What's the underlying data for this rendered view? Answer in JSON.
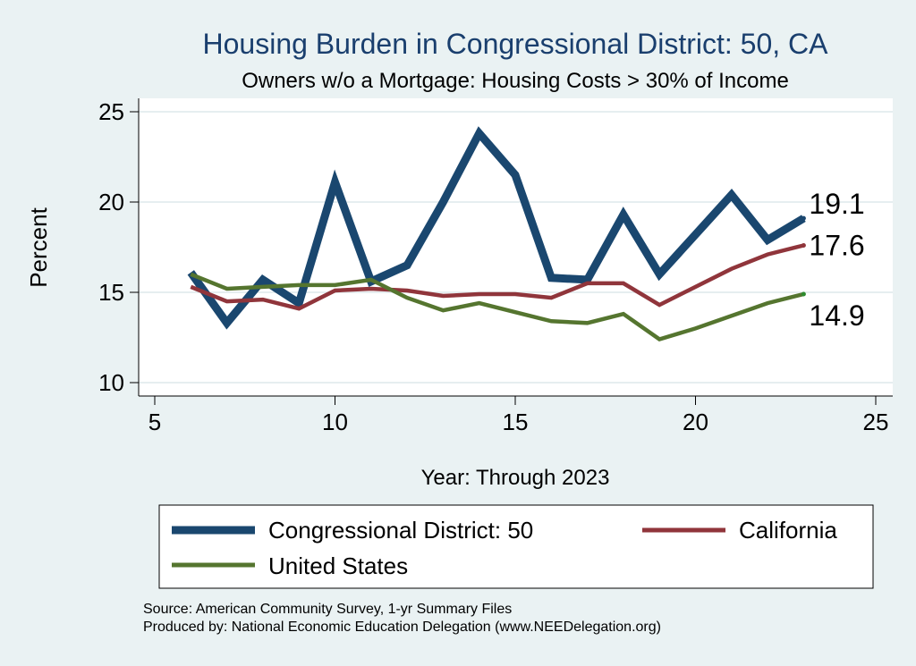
{
  "chart_data": {
    "type": "line",
    "title": "Housing Burden in Congressional District:  50, CA",
    "subtitle": "Owners w/o a Mortgage: Housing Costs > 30% of Income",
    "xlabel": "Year: Through 2023",
    "ylabel": "Percent",
    "xlim": [
      5,
      25
    ],
    "ylim": [
      10,
      25
    ],
    "xticks": [
      5,
      10,
      15,
      20,
      25
    ],
    "yticks": [
      10,
      15,
      20,
      25
    ],
    "grid": true,
    "series": [
      {
        "name": "Congressional District:  50",
        "color": "#1a476f",
        "x": [
          6,
          7,
          8,
          9,
          10,
          11,
          12,
          13,
          14,
          15,
          16,
          17,
          18,
          19,
          20,
          21,
          22,
          23
        ],
        "values": [
          16.1,
          13.3,
          15.7,
          14.4,
          21.1,
          15.6,
          16.5,
          20.0,
          23.8,
          21.5,
          15.8,
          15.7,
          19.3,
          16.0,
          18.2,
          20.4,
          17.9,
          19.1
        ],
        "end_label": "19.1"
      },
      {
        "name": "California",
        "color": "#90353b",
        "x": [
          6,
          7,
          8,
          9,
          10,
          11,
          12,
          13,
          14,
          15,
          16,
          17,
          18,
          19,
          20,
          21,
          22,
          23
        ],
        "values": [
          15.3,
          14.5,
          14.6,
          14.1,
          15.1,
          15.2,
          15.1,
          14.8,
          14.9,
          14.9,
          14.7,
          15.5,
          15.5,
          14.3,
          15.3,
          16.3,
          17.1,
          17.6
        ],
        "end_label": "17.6"
      },
      {
        "name": "United States",
        "color": "#55752f",
        "x": [
          6,
          7,
          8,
          9,
          10,
          11,
          12,
          13,
          14,
          15,
          16,
          17,
          18,
          19,
          20,
          21,
          22,
          23
        ],
        "values": [
          16.0,
          15.2,
          15.3,
          15.4,
          15.4,
          15.7,
          14.7,
          14.0,
          14.4,
          13.9,
          13.4,
          13.3,
          13.8,
          12.4,
          13.0,
          13.7,
          14.4,
          14.9
        ],
        "end_label": "14.9"
      }
    ],
    "legend": {
      "placement": "bottom",
      "entries": [
        "Congressional District:  50",
        "California",
        "United States"
      ]
    },
    "notes": [
      "Source: American Community Survey, 1-yr Summary Files",
      "Produced by: National Economic Education Delegation (www.NEEDelegation.org)"
    ]
  }
}
